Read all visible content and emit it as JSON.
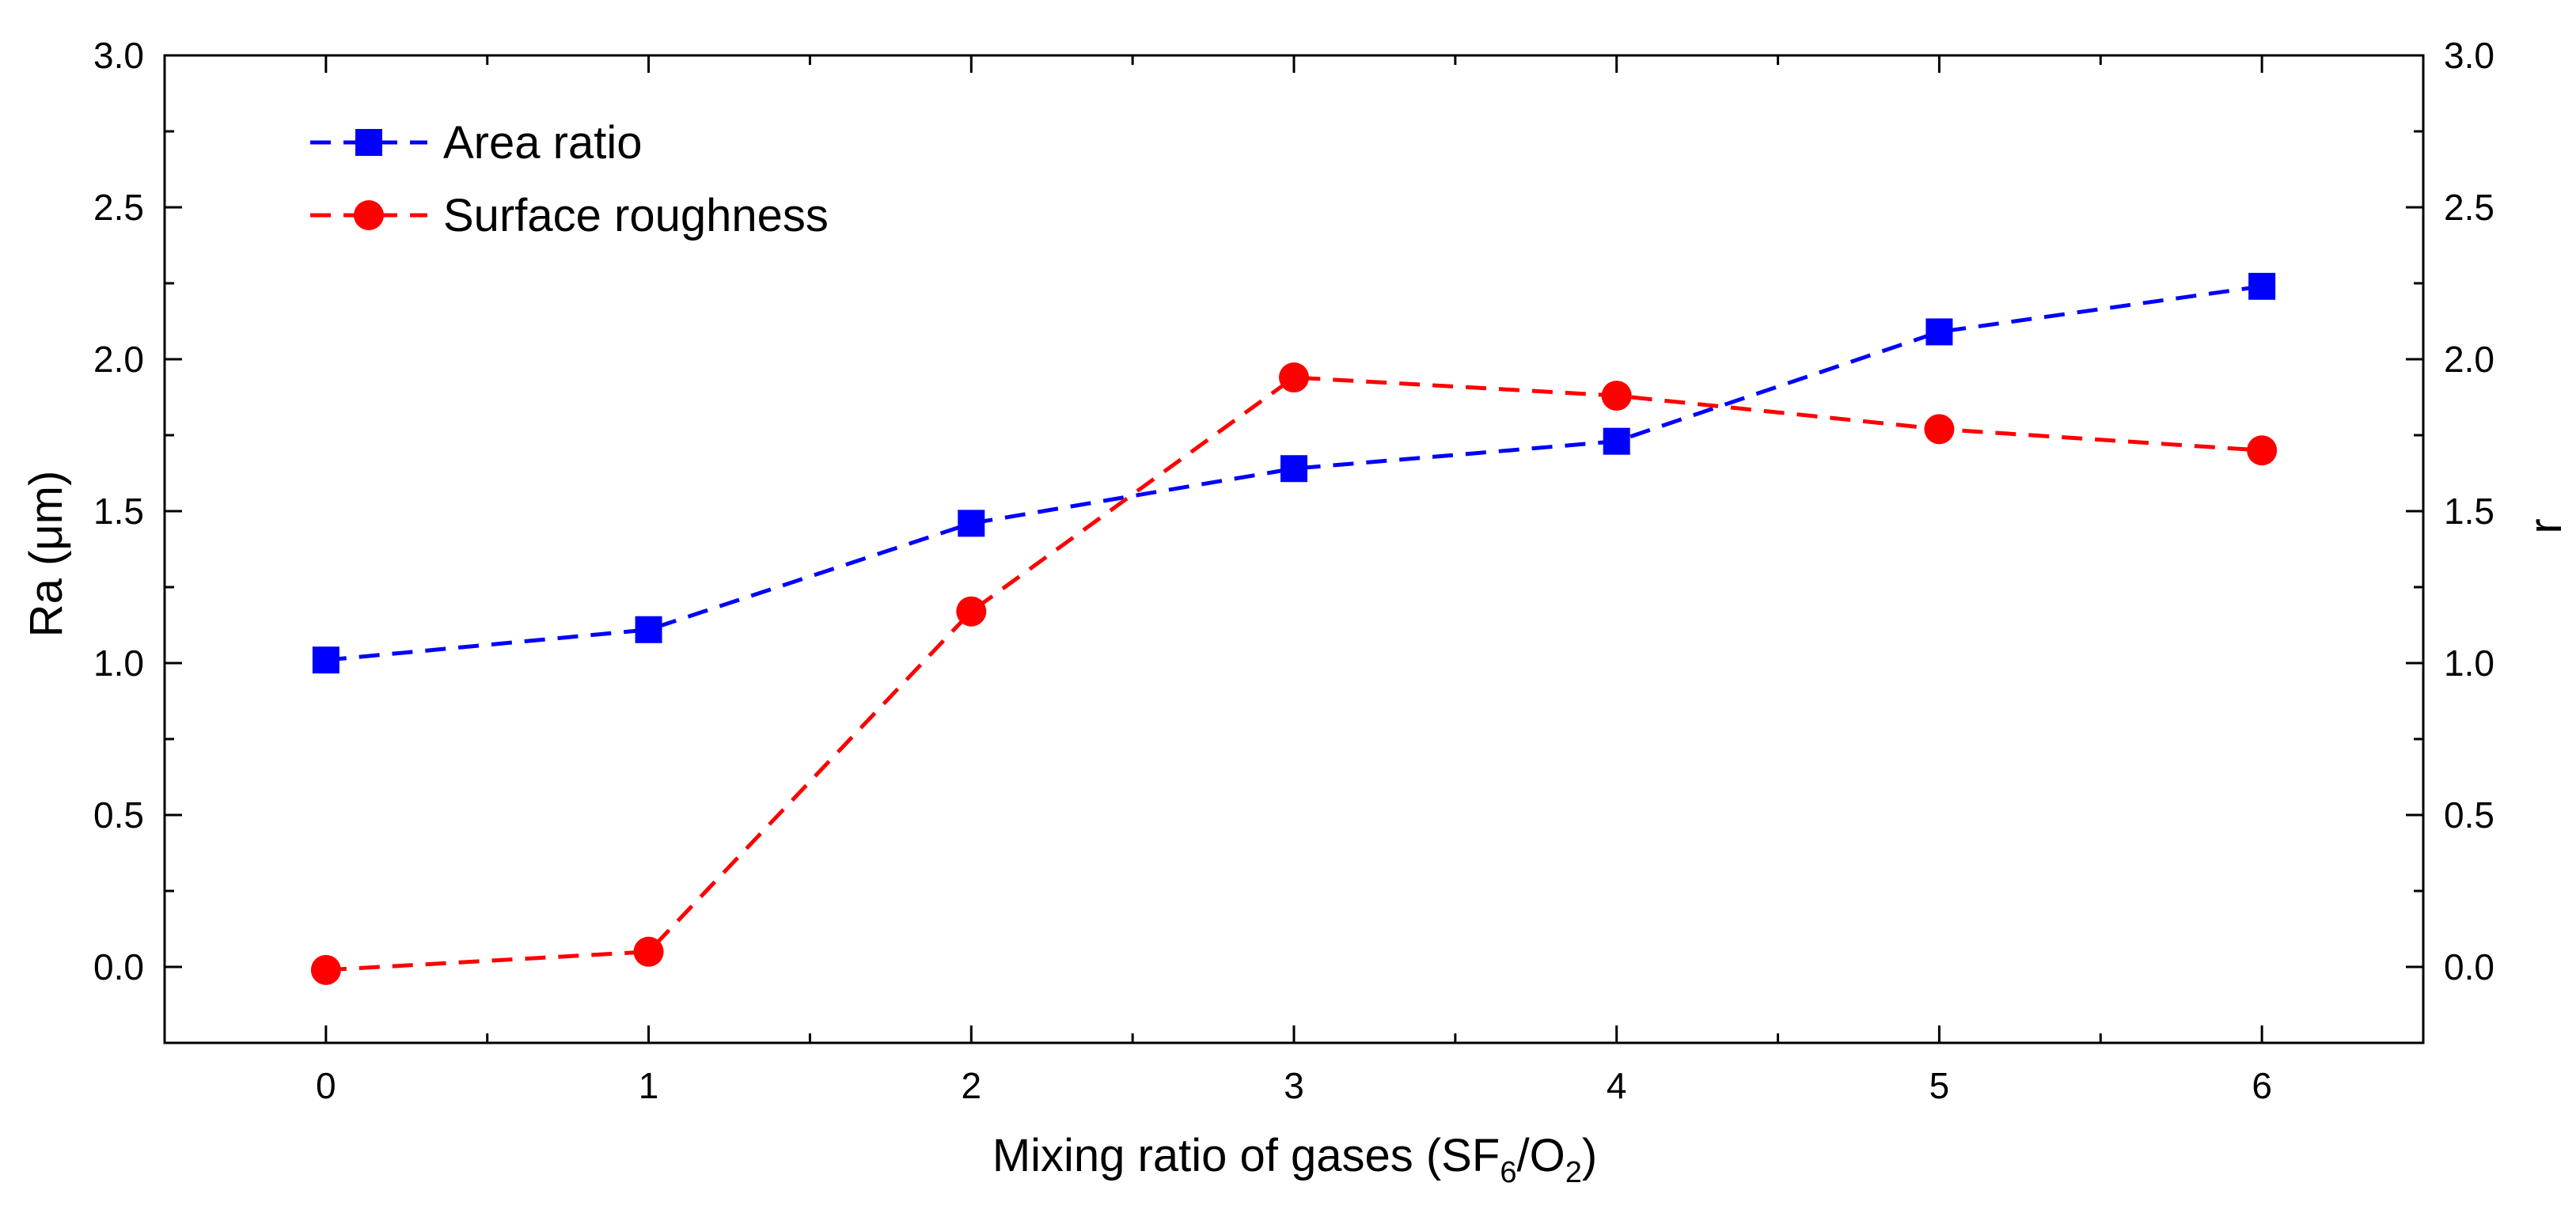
{
  "chart_data": {
    "type": "line",
    "title": "",
    "xlabel": {
      "prefix": "Mixing ratio of gases (SF",
      "sub1": "6",
      "mid": "/O",
      "sub2": "2",
      "suffix": ")"
    },
    "ylabel": "Ra (μm)",
    "y2label": "r",
    "x": [
      0,
      1,
      2,
      3,
      4,
      5,
      6
    ],
    "xlim": [
      -0.5,
      6.5
    ],
    "ylim": [
      -0.25,
      3.0
    ],
    "y2lim": [
      -0.25,
      3.0
    ],
    "xticks": [
      "0",
      "1",
      "2",
      "3",
      "4",
      "5",
      "6"
    ],
    "yticks": [
      "0.0",
      "0.5",
      "1.0",
      "1.5",
      "2.0",
      "2.5",
      "3.0"
    ],
    "y2ticks": [
      "0.0",
      "0.5",
      "1.0",
      "1.5",
      "2.0",
      "2.5",
      "3.0"
    ],
    "grid": false,
    "legend_position": "top-left",
    "series": [
      {
        "name": "Area ratio",
        "axis": "right",
        "marker": "square",
        "line": "dashed",
        "color": "#0000ff",
        "values": [
          1.01,
          1.11,
          1.46,
          1.64,
          1.73,
          2.09,
          2.24
        ]
      },
      {
        "name": "Surface roughness",
        "axis": "left",
        "marker": "circle",
        "line": "dashed",
        "color": "#ff0000",
        "values": [
          -0.01,
          0.05,
          1.17,
          1.94,
          1.88,
          1.77,
          1.7
        ]
      }
    ]
  }
}
